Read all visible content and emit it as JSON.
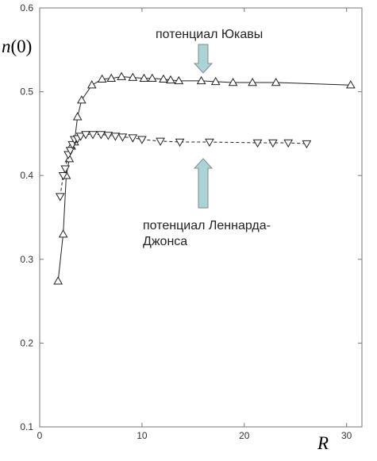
{
  "chart_data": {
    "type": "line",
    "ylabel_var": "n",
    "ylabel_arg": "(0)",
    "xlabel": "R",
    "xlim": [
      0,
      31.5
    ],
    "ylim": [
      0.1,
      0.6
    ],
    "xticks": [
      0,
      10,
      20,
      30
    ],
    "yticks": [
      0.1,
      0.2,
      0.3,
      0.4,
      0.5,
      0.6
    ],
    "xtick_labels": [
      "0",
      "10",
      "20",
      "30"
    ],
    "ytick_labels": [
      "0.1",
      "0.2",
      "0.3",
      "0.4",
      "0.5",
      "0.6"
    ],
    "grid": false,
    "series": [
      {
        "name": "потенциал Юкавы",
        "marker": "triangle-up",
        "line": "solid",
        "x": [
          1.8,
          2.3,
          2.6,
          2.9,
          3.1,
          3.4,
          3.7,
          4.1,
          5.1,
          6.1,
          7.0,
          8.0,
          9.1,
          10.2,
          11.0,
          12.1,
          12.8,
          13.6,
          15.8,
          17.2,
          18.9,
          20.8,
          23.1,
          30.4
        ],
        "y": [
          0.274,
          0.33,
          0.4,
          0.42,
          0.435,
          0.44,
          0.47,
          0.49,
          0.508,
          0.515,
          0.516,
          0.518,
          0.517,
          0.516,
          0.516,
          0.515,
          0.514,
          0.513,
          0.513,
          0.512,
          0.511,
          0.511,
          0.511,
          0.508
        ]
      },
      {
        "name": "потенциал Леннарда-Джонса",
        "marker": "triangle-down",
        "line": "dashed",
        "x": [
          2.0,
          2.3,
          2.5,
          2.8,
          3.0,
          3.2,
          3.4,
          3.7,
          4.0,
          4.5,
          5.2,
          6.0,
          6.7,
          7.4,
          8.1,
          9.1,
          10.0,
          11.8,
          13.7,
          16.6,
          21.3,
          22.8,
          24.3,
          26.1
        ],
        "y": [
          0.375,
          0.4,
          0.408,
          0.425,
          0.43,
          0.437,
          0.443,
          0.444,
          0.447,
          0.449,
          0.449,
          0.449,
          0.448,
          0.447,
          0.446,
          0.445,
          0.443,
          0.441,
          0.44,
          0.44,
          0.439,
          0.439,
          0.439,
          0.438
        ]
      }
    ],
    "annotations": [
      {
        "text": "потенциал Юкавы",
        "color": "#a9d3d6",
        "arrow": "down"
      },
      {
        "text_lines": [
          "потенциал Леннарда-",
          "Джонса"
        ],
        "color": "#a9d3d6",
        "arrow": "up"
      }
    ]
  }
}
